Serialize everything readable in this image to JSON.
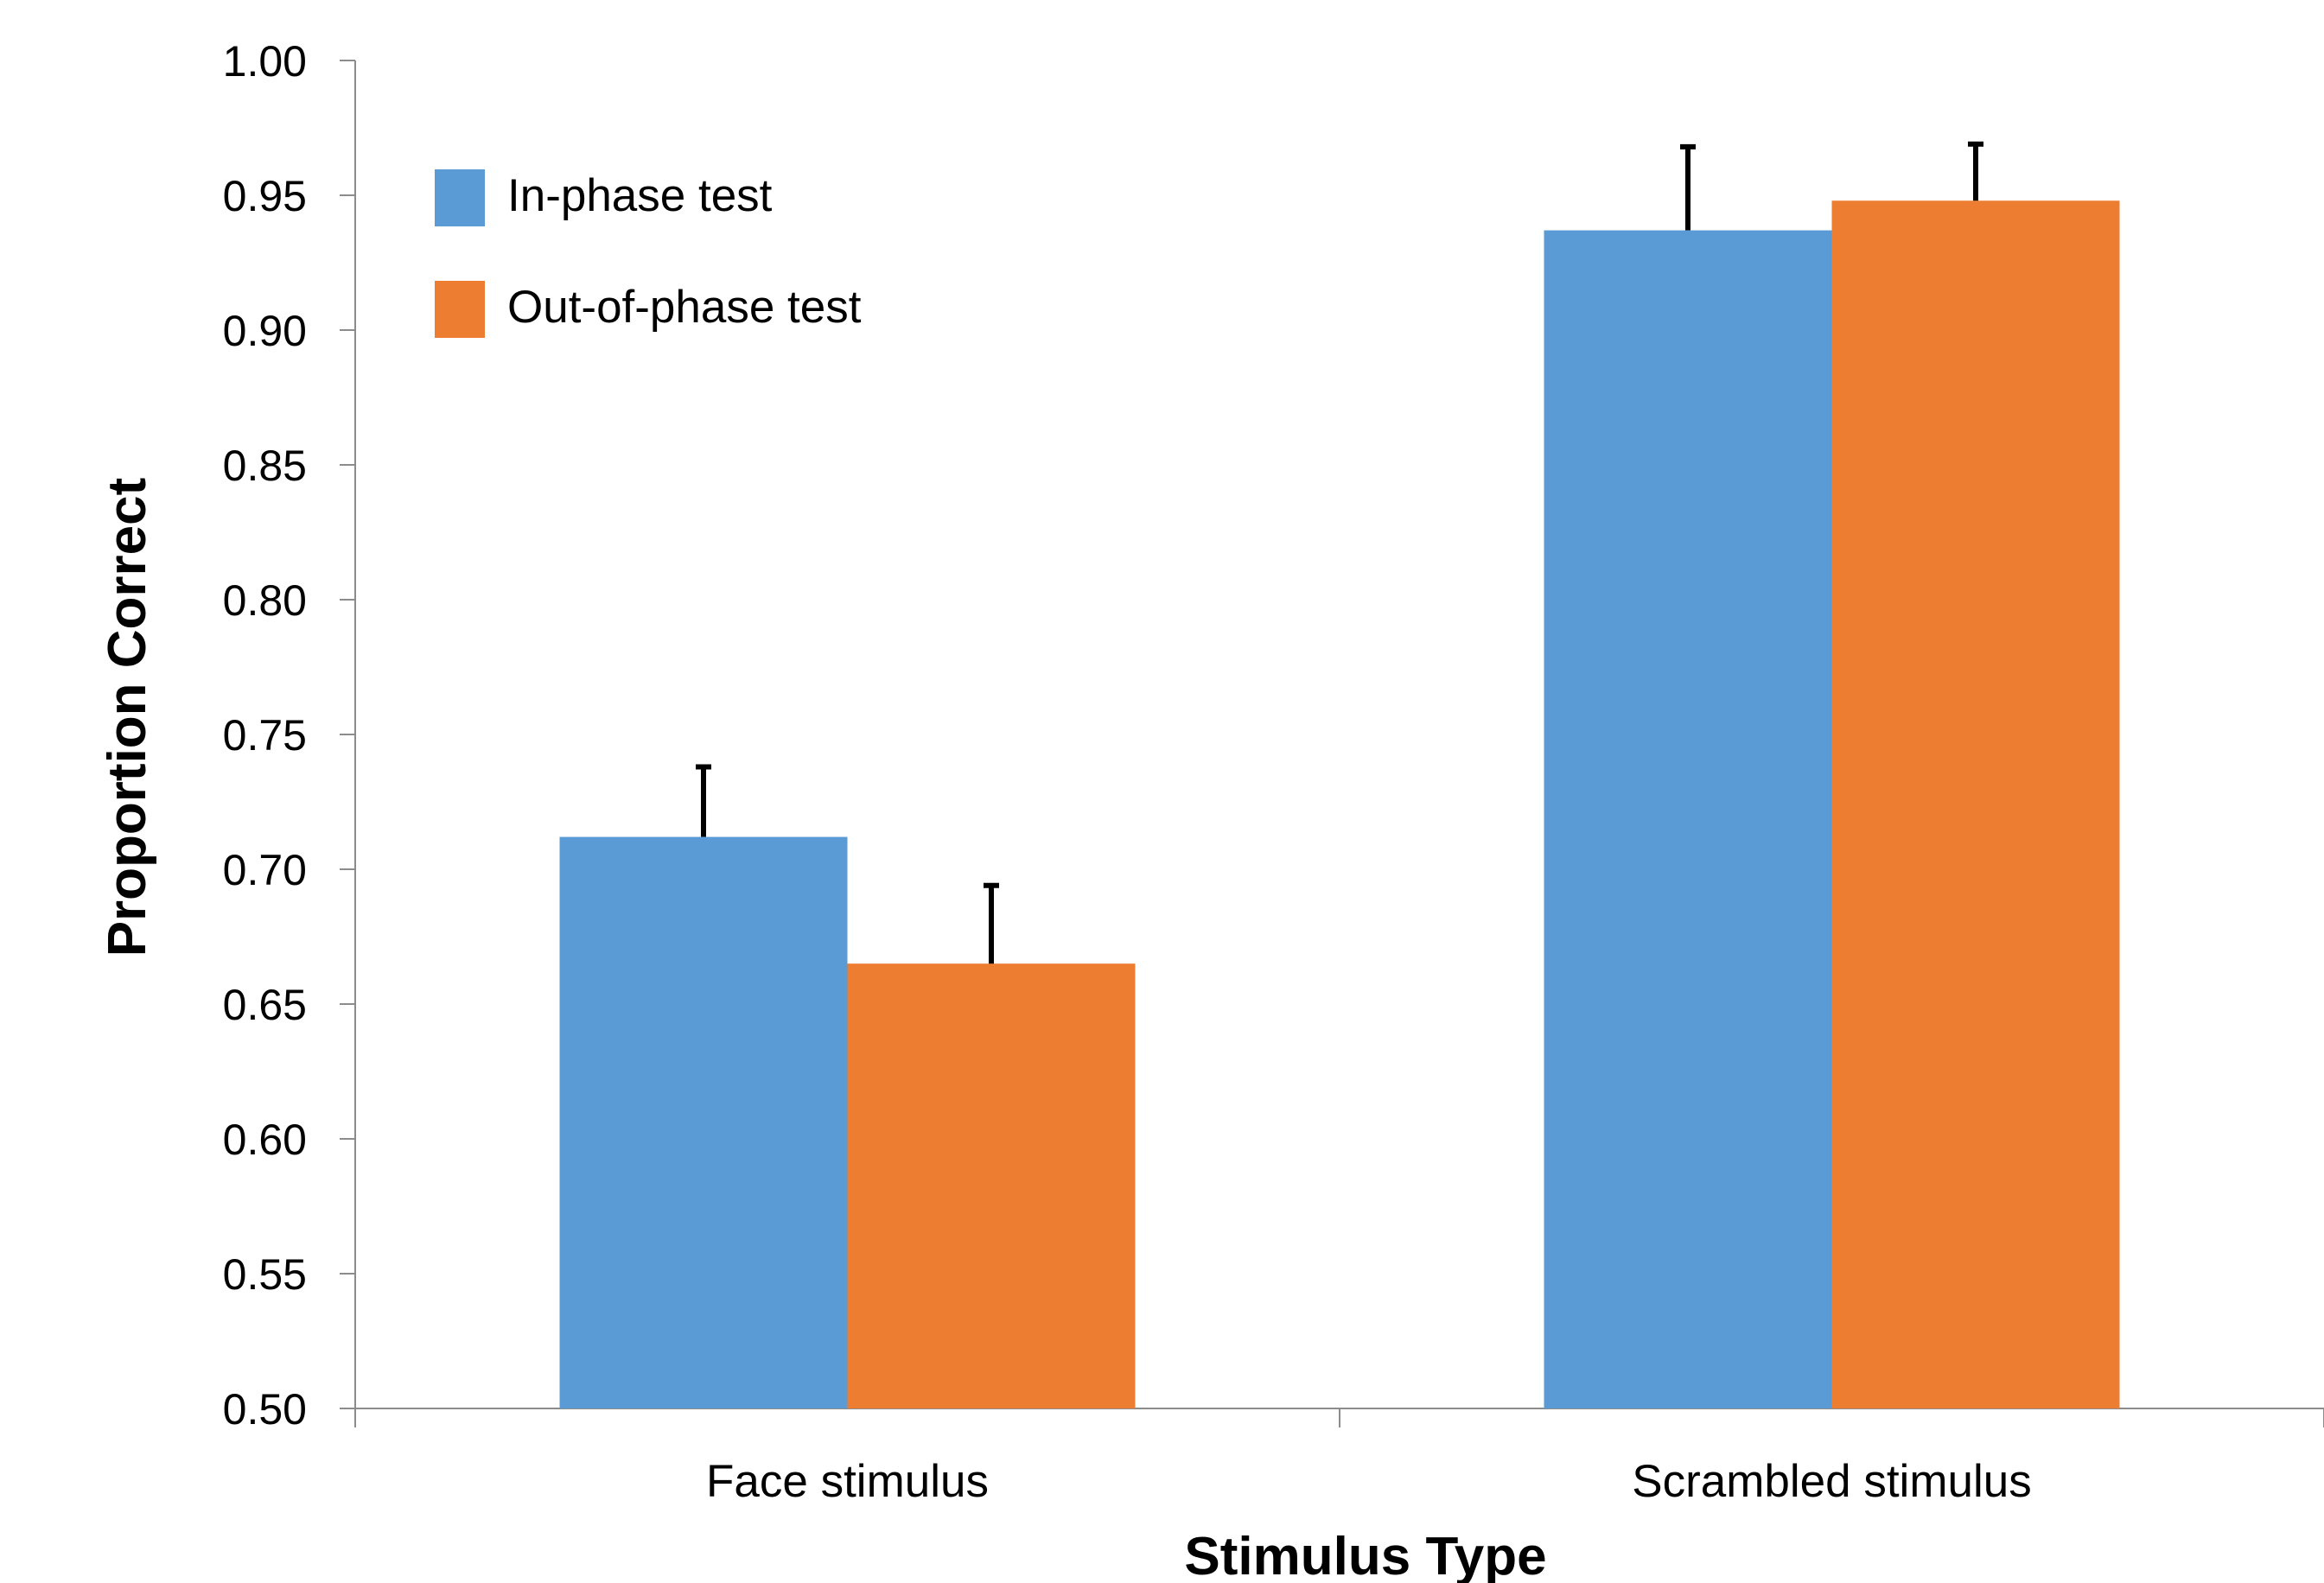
{
  "chart_data": {
    "type": "bar",
    "title": "",
    "xlabel": "Stimulus Type",
    "ylabel": "Proportion Correct",
    "ylim": [
      0.5,
      1.0
    ],
    "yticks": [
      "0.50",
      "0.55",
      "0.60",
      "0.65",
      "0.70",
      "0.75",
      "0.80",
      "0.85",
      "0.90",
      "0.95",
      "1.00"
    ],
    "categories": [
      "Face stimulus",
      "Scrambled stimulus"
    ],
    "series": [
      {
        "name": "In-phase test",
        "values": [
          0.712,
          0.937
        ],
        "errors": [
          0.026,
          0.031
        ],
        "color": "#5b9bd5"
      },
      {
        "name": "Out-of-phase test",
        "values": [
          0.665,
          0.948
        ],
        "errors": [
          0.029,
          0.021
        ],
        "color": "#ed7d31"
      }
    ],
    "grid": false,
    "legend_position": "top-left"
  }
}
